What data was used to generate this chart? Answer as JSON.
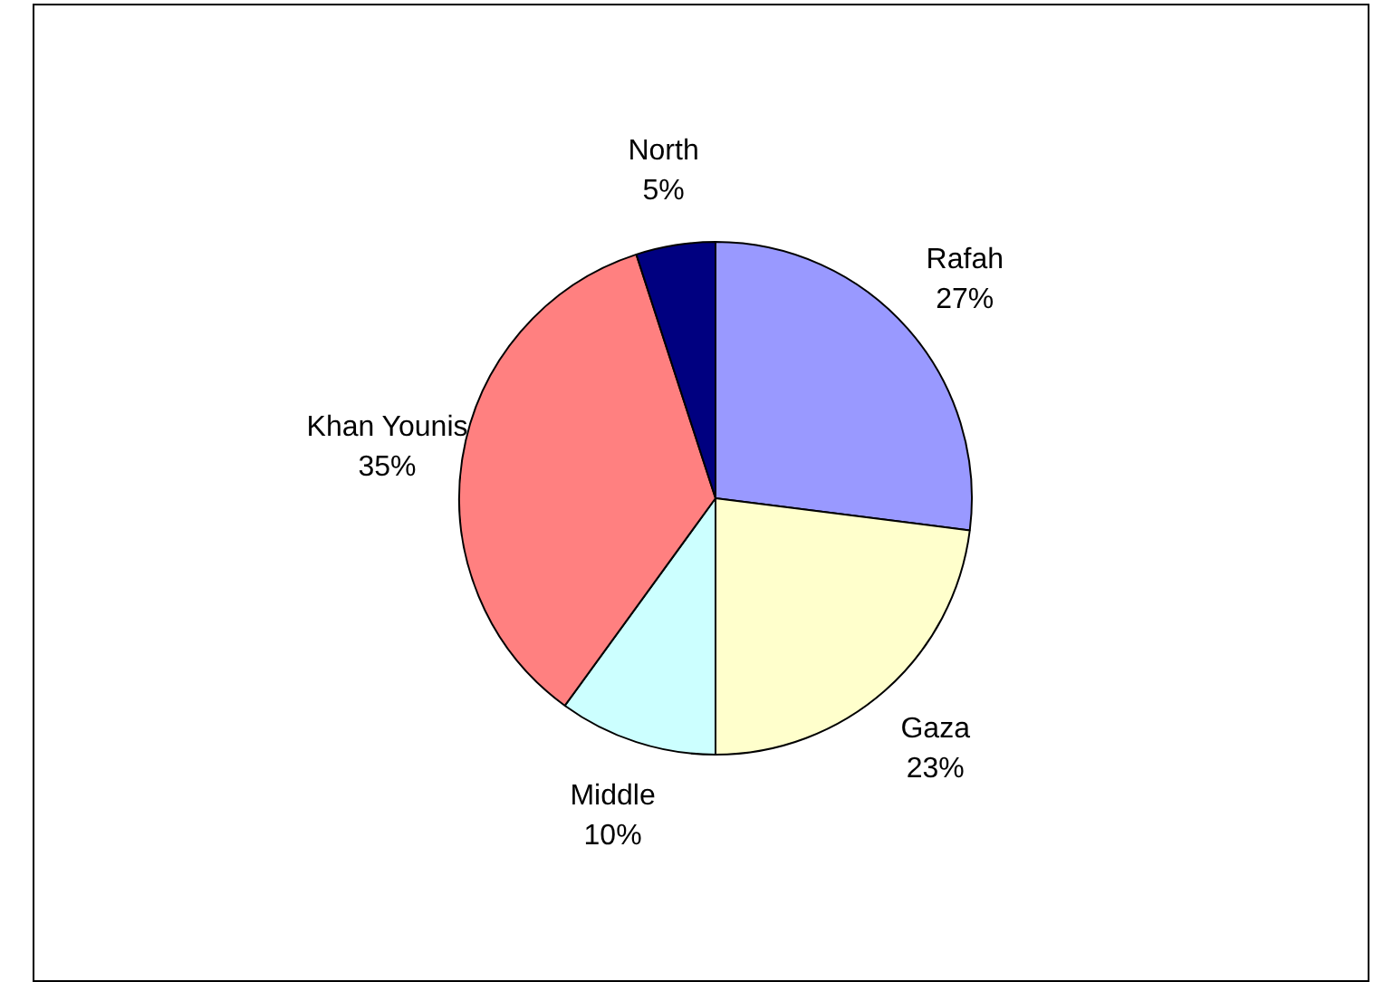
{
  "chart_data": {
    "type": "pie",
    "categories": [
      "Rafah",
      "Gaza",
      "Middle",
      "Khan Younis",
      "North"
    ],
    "values": [
      27,
      23,
      10,
      35,
      5
    ],
    "value_labels": [
      "27%",
      "23%",
      "10%",
      "35%",
      "5%"
    ],
    "colors": [
      "#9999ff",
      "#ffffcc",
      "#ccffff",
      "#ff8080",
      "#000080"
    ],
    "legend": false
  }
}
